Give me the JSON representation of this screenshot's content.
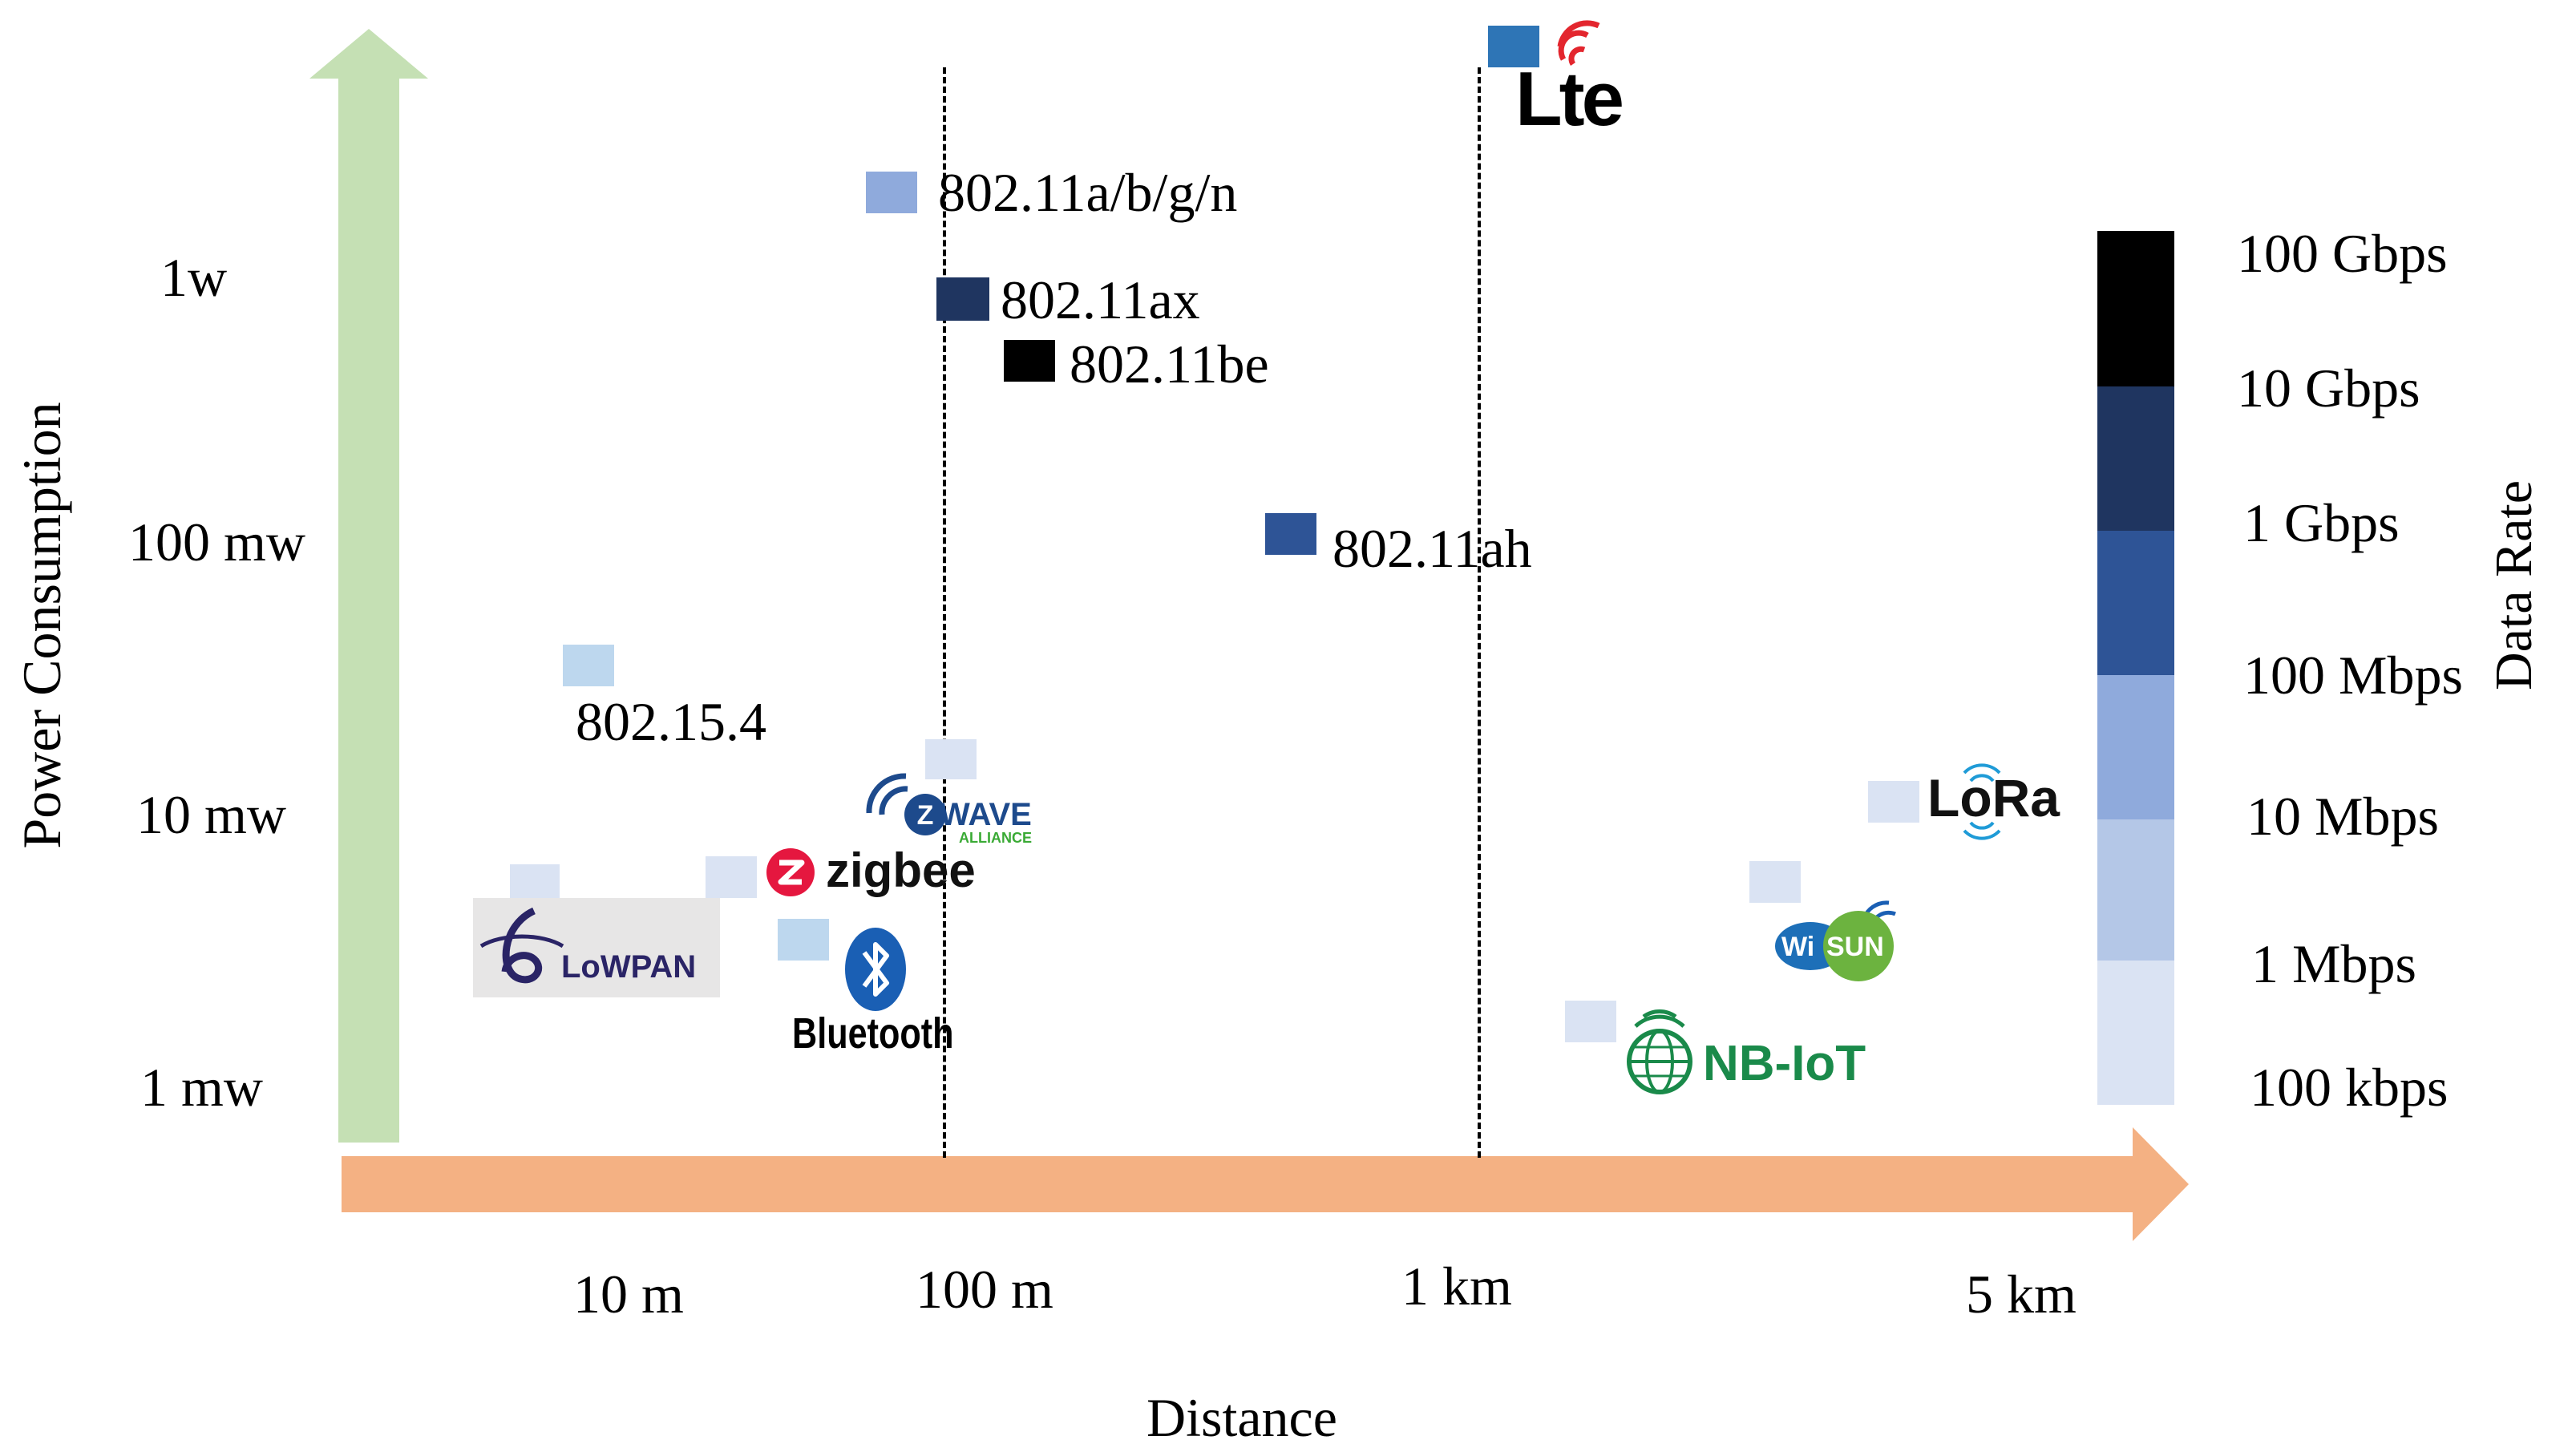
{
  "axes": {
    "y_title": "Power Consumption",
    "x_title": "Distance",
    "y_ticks": [
      "1w",
      "100 mw",
      "10 mw",
      "1 mw"
    ],
    "x_ticks": [
      "10 m",
      "100 m",
      "1 km",
      "5 km"
    ]
  },
  "colorbar": {
    "title": "Data Rate",
    "labels": [
      "100 Gbps",
      "10 Gbps",
      "1 Gbps",
      "100 Mbps",
      "10 Mbps",
      "1 Mbps",
      "100 kbps"
    ],
    "colors": [
      "#000000",
      "#1f3560",
      "#2e5496",
      "#8faadc",
      "#b4c7e7",
      "#dae3f3"
    ]
  },
  "technologies": {
    "wifi_abgn": {
      "label": "802.11a/b/g/n",
      "color": "#8faadc"
    },
    "wifi_ax": {
      "label": "802.11ax",
      "color": "#1f3560"
    },
    "wifi_be": {
      "label": "802.11be",
      "color": "#000000"
    },
    "wifi_ah": {
      "label": "802.11ah",
      "color": "#2e5496"
    },
    "ieee_802154": {
      "label": "802.15.4",
      "color": "#bdd7ee"
    },
    "lte": {
      "label": "Lte",
      "color": "#2e75b6"
    },
    "zwave": {
      "label": "WAVE",
      "sub": "ALLIANCE",
      "color": "#dae3f3"
    },
    "zigbee": {
      "label": "zigbee",
      "color": "#dae3f3"
    },
    "lowpan": {
      "label": "LoWPAN",
      "color": "#dae3f3"
    },
    "bluetooth": {
      "label": "Bluetooth",
      "color": "#bdd7ee"
    },
    "lora": {
      "label": "LoRa",
      "color": "#dae3f3"
    },
    "wisun": {
      "label_a": "Wi",
      "label_b": "SUN",
      "color": "#dae3f3"
    },
    "nbiot": {
      "label": "NB-IoT",
      "color": "#dae3f3"
    }
  },
  "colors": {
    "power_arrow": "#c5e0b4",
    "distance_arrow": "#f4b183",
    "zigbee_red": "#e5173f",
    "zwave_blue": "#1d4a8c",
    "zwave_green": "#3aaa35",
    "nbiot_green": "#1a8a4a",
    "lora_blue": "#1f9bd7",
    "wisun_green": "#6cb33f",
    "lte_red": "#e3262e"
  }
}
